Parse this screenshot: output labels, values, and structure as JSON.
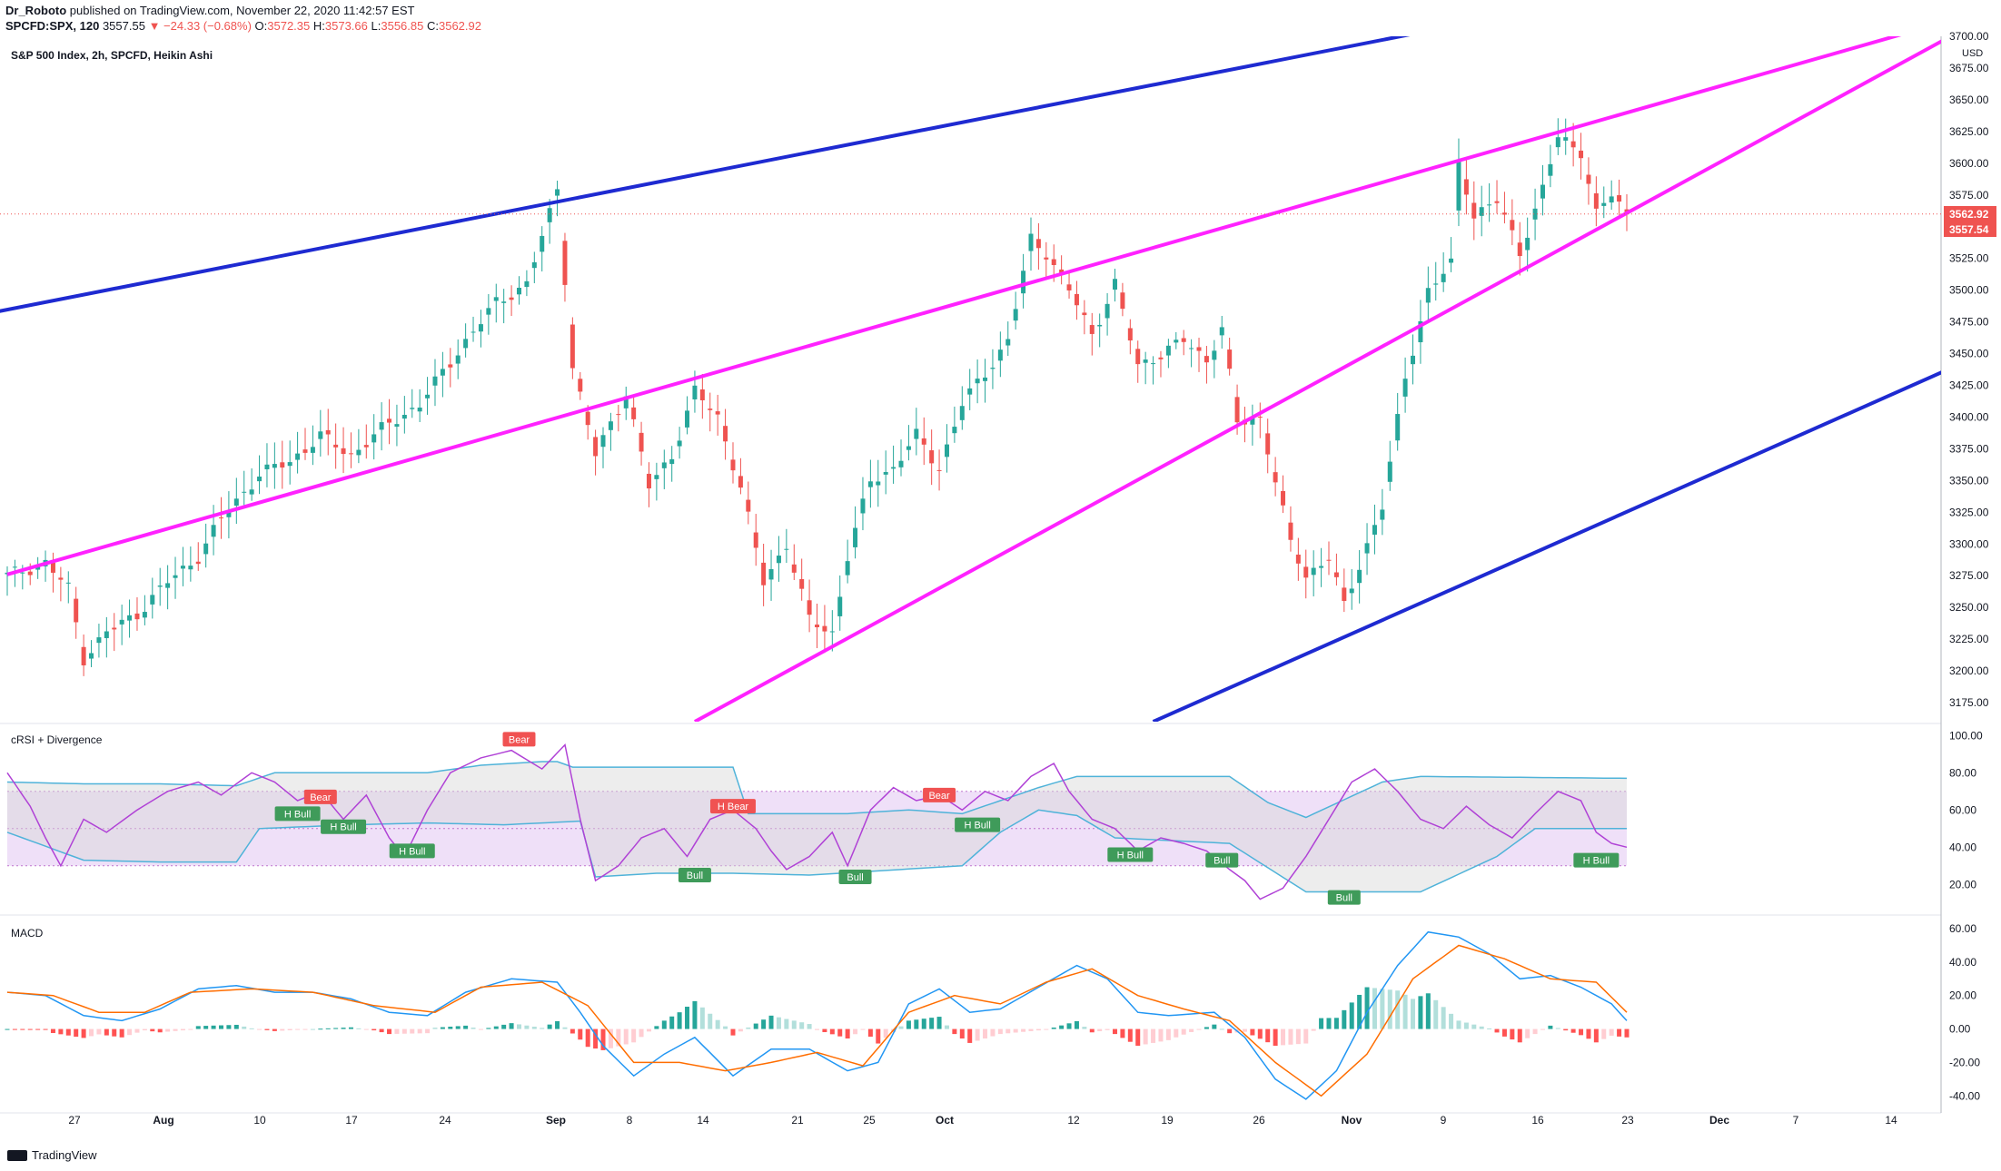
{
  "header": {
    "author": "Dr_Roboto",
    "published": "published on TradingView.com, November 22, 2020 11:42:57 EST",
    "symbol": "SPCFD:SPX, 120",
    "last": "3557.55",
    "change": "▼ −24.33 (−0.68%)",
    "o_label": "O:",
    "o_val": "3572.35",
    "h_label": "H:",
    "h_val": "3573.66",
    "l_label": "L:",
    "l_val": "3556.85",
    "c_label": "C:",
    "c_val": "3562.92"
  },
  "main_title": "S&P 500 Index, 2h, SPCFD, Heikin Ashi",
  "rsi_title": "cRSI + Divergence",
  "macd_title": "MACD",
  "footer_brand": "TradingView",
  "colors": {
    "up": "#26a69a",
    "down": "#ef5350",
    "blue_line": "#1e2ad1",
    "magenta": "#ff22ff",
    "rsi_band": "#e9d6f5",
    "cloud": "#e5e5e5",
    "macd_line": "#2196f3",
    "signal_line": "#ff6d00"
  },
  "chart_data": [
    {
      "type": "candlestick",
      "title": "S&P 500 Index, 2h, SPCFD, Heikin Ashi",
      "currency": "USD",
      "y_ticks": [
        3175,
        3200,
        3225,
        3250,
        3275,
        3300,
        3325,
        3350,
        3375,
        3400,
        3425,
        3450,
        3475,
        3500,
        3525,
        3550,
        3575,
        3600,
        3625,
        3650,
        3675,
        3700
      ],
      "ylim": [
        3160,
        3700
      ],
      "x_ticks": [
        "27",
        "Aug",
        "10",
        "17",
        "24",
        "Sep",
        "8",
        "14",
        "21",
        "25",
        "Oct",
        "12",
        "19",
        "26",
        "Nov",
        "9",
        "16",
        "23",
        "Dec",
        "7",
        "14"
      ],
      "price_labels": [
        "3562.92",
        "3557.54"
      ],
      "last_price": 3560,
      "path_anchors": [
        [
          0,
          3275
        ],
        [
          5,
          3285
        ],
        [
          8,
          3265
        ],
        [
          10,
          3210
        ],
        [
          13,
          3230
        ],
        [
          17,
          3245
        ],
        [
          21,
          3270
        ],
        [
          25,
          3290
        ],
        [
          28,
          3320
        ],
        [
          33,
          3355
        ],
        [
          37,
          3365
        ],
        [
          41,
          3385
        ],
        [
          45,
          3370
        ],
        [
          50,
          3395
        ],
        [
          54,
          3410
        ],
        [
          60,
          3460
        ],
        [
          64,
          3490
        ],
        [
          68,
          3505
        ],
        [
          71,
          3560
        ],
        [
          72,
          3580
        ],
        [
          74,
          3440
        ],
        [
          77,
          3370
        ],
        [
          81,
          3420
        ],
        [
          84,
          3345
        ],
        [
          87,
          3370
        ],
        [
          90,
          3420
        ],
        [
          93,
          3400
        ],
        [
          96,
          3345
        ],
        [
          99,
          3270
        ],
        [
          102,
          3300
        ],
        [
          105,
          3240
        ],
        [
          108,
          3230
        ],
        [
          110,
          3290
        ],
        [
          113,
          3350
        ],
        [
          116,
          3360
        ],
        [
          119,
          3385
        ],
        [
          122,
          3360
        ],
        [
          125,
          3410
        ],
        [
          128,
          3435
        ],
        [
          131,
          3460
        ],
        [
          134,
          3540
        ],
        [
          136,
          3530
        ],
        [
          139,
          3500
        ],
        [
          142,
          3465
        ],
        [
          145,
          3505
        ],
        [
          148,
          3440
        ],
        [
          151,
          3450
        ],
        [
          154,
          3460
        ],
        [
          157,
          3445
        ],
        [
          159,
          3470
        ],
        [
          161,
          3395
        ],
        [
          164,
          3400
        ],
        [
          166,
          3350
        ],
        [
          168,
          3300
        ],
        [
          170,
          3275
        ],
        [
          173,
          3290
        ],
        [
          175,
          3250
        ],
        [
          178,
          3300
        ],
        [
          180,
          3330
        ],
        [
          183,
          3430
        ],
        [
          186,
          3500
        ],
        [
          189,
          3520
        ],
        [
          190,
          3600
        ],
        [
          192,
          3560
        ],
        [
          195,
          3570
        ],
        [
          198,
          3530
        ],
        [
          201,
          3580
        ],
        [
          203,
          3620
        ],
        [
          206,
          3610
        ],
        [
          208,
          3560
        ],
        [
          210,
          3575
        ],
        [
          212,
          3560
        ]
      ],
      "trendlines": [
        {
          "name": "upper-blue",
          "color": "#1e2ad1",
          "from": [
            -20,
            3461
          ],
          "to": [
            240,
            3768
          ]
        },
        {
          "name": "lower-blue",
          "color": "#1e2ad1",
          "from": [
            150,
            3160
          ],
          "to": [
            255,
            3440
          ]
        },
        {
          "name": "upper-magenta",
          "color": "#ff22ff",
          "from": [
            0,
            3276
          ],
          "to": [
            250,
            3705
          ]
        },
        {
          "name": "lower-magenta",
          "color": "#ff22ff",
          "from": [
            90,
            3160
          ],
          "to": [
            255,
            3702
          ]
        }
      ]
    },
    {
      "type": "line",
      "title": "cRSI + Divergence",
      "y_ticks": [
        20,
        40,
        60,
        80,
        100
      ],
      "ylim": [
        5,
        105
      ],
      "band": [
        30,
        70
      ],
      "midline": 50,
      "crsi_anchors": [
        [
          0,
          80
        ],
        [
          3,
          62
        ],
        [
          5,
          45
        ],
        [
          7,
          30
        ],
        [
          10,
          55
        ],
        [
          13,
          48
        ],
        [
          17,
          60
        ],
        [
          21,
          70
        ],
        [
          25,
          75
        ],
        [
          28,
          68
        ],
        [
          32,
          80
        ],
        [
          35,
          75
        ],
        [
          38,
          65
        ],
        [
          41,
          70
        ],
        [
          44,
          55
        ],
        [
          47,
          68
        ],
        [
          50,
          45
        ],
        [
          52,
          35
        ],
        [
          55,
          60
        ],
        [
          58,
          80
        ],
        [
          62,
          88
        ],
        [
          66,
          92
        ],
        [
          70,
          82
        ],
        [
          73,
          95
        ],
        [
          75,
          55
        ],
        [
          77,
          22
        ],
        [
          80,
          30
        ],
        [
          83,
          45
        ],
        [
          86,
          50
        ],
        [
          89,
          35
        ],
        [
          92,
          55
        ],
        [
          95,
          60
        ],
        [
          98,
          50
        ],
        [
          100,
          38
        ],
        [
          102,
          28
        ],
        [
          105,
          35
        ],
        [
          108,
          48
        ],
        [
          110,
          30
        ],
        [
          113,
          60
        ],
        [
          116,
          72
        ],
        [
          119,
          65
        ],
        [
          122,
          68
        ],
        [
          125,
          60
        ],
        [
          128,
          70
        ],
        [
          131,
          65
        ],
        [
          134,
          78
        ],
        [
          137,
          85
        ],
        [
          139,
          70
        ],
        [
          142,
          55
        ],
        [
          145,
          50
        ],
        [
          148,
          38
        ],
        [
          151,
          45
        ],
        [
          154,
          42
        ],
        [
          157,
          38
        ],
        [
          160,
          28
        ],
        [
          162,
          22
        ],
        [
          164,
          12
        ],
        [
          167,
          18
        ],
        [
          170,
          35
        ],
        [
          173,
          55
        ],
        [
          176,
          75
        ],
        [
          179,
          82
        ],
        [
          182,
          70
        ],
        [
          185,
          55
        ],
        [
          188,
          50
        ],
        [
          191,
          62
        ],
        [
          194,
          52
        ],
        [
          197,
          45
        ],
        [
          200,
          58
        ],
        [
          203,
          70
        ],
        [
          206,
          65
        ],
        [
          208,
          48
        ],
        [
          210,
          42
        ],
        [
          212,
          40
        ]
      ],
      "upper_anchors": [
        [
          0,
          75
        ],
        [
          10,
          74
        ],
        [
          20,
          74
        ],
        [
          30,
          73
        ],
        [
          35,
          80
        ],
        [
          45,
          80
        ],
        [
          55,
          80
        ],
        [
          62,
          84
        ],
        [
          70,
          86
        ],
        [
          72,
          86
        ],
        [
          74,
          83
        ],
        [
          85,
          83
        ],
        [
          95,
          83
        ],
        [
          97,
          58
        ],
        [
          110,
          58
        ],
        [
          118,
          60
        ],
        [
          125,
          58
        ],
        [
          135,
          72
        ],
        [
          140,
          78
        ],
        [
          160,
          78
        ],
        [
          165,
          64
        ],
        [
          170,
          56
        ],
        [
          180,
          75
        ],
        [
          185,
          78
        ],
        [
          212,
          77
        ]
      ],
      "lower_anchors": [
        [
          0,
          48
        ],
        [
          10,
          33
        ],
        [
          20,
          32
        ],
        [
          30,
          32
        ],
        [
          33,
          50
        ],
        [
          45,
          52
        ],
        [
          55,
          53
        ],
        [
          65,
          52
        ],
        [
          75,
          54
        ],
        [
          77,
          24
        ],
        [
          85,
          26
        ],
        [
          95,
          26
        ],
        [
          105,
          25
        ],
        [
          125,
          30
        ],
        [
          130,
          48
        ],
        [
          135,
          60
        ],
        [
          140,
          57
        ],
        [
          145,
          45
        ],
        [
          160,
          42
        ],
        [
          170,
          16
        ],
        [
          185,
          16
        ],
        [
          195,
          35
        ],
        [
          200,
          50
        ],
        [
          212,
          50
        ]
      ],
      "signals": [
        {
          "label": "Bear",
          "x": 67,
          "v": 98,
          "kind": "bear"
        },
        {
          "label": "Bear",
          "x": 41,
          "v": 67,
          "kind": "bear"
        },
        {
          "label": "H Bull",
          "x": 38,
          "v": 58,
          "kind": "bull"
        },
        {
          "label": "H Bull",
          "x": 44,
          "v": 51,
          "kind": "bull"
        },
        {
          "label": "H Bull",
          "x": 53,
          "v": 38,
          "kind": "bull"
        },
        {
          "label": "H Bear",
          "x": 95,
          "v": 62,
          "kind": "bear"
        },
        {
          "label": "Bull",
          "x": 90,
          "v": 25,
          "kind": "bull"
        },
        {
          "label": "Bull",
          "x": 111,
          "v": 24,
          "kind": "bull"
        },
        {
          "label": "Bear",
          "x": 122,
          "v": 68,
          "kind": "bear"
        },
        {
          "label": "H Bull",
          "x": 127,
          "v": 52,
          "kind": "bull"
        },
        {
          "label": "H Bull",
          "x": 147,
          "v": 36,
          "kind": "bull"
        },
        {
          "label": "Bull",
          "x": 159,
          "v": 33,
          "kind": "bull"
        },
        {
          "label": "Bull",
          "x": 175,
          "v": 13,
          "kind": "bull"
        },
        {
          "label": "H Bull",
          "x": 208,
          "v": 33,
          "kind": "bull"
        }
      ]
    },
    {
      "type": "line",
      "title": "MACD",
      "y_ticks": [
        -40,
        -20,
        0,
        20,
        40,
        60
      ],
      "ylim": [
        -48,
        66
      ],
      "macd_anchors": [
        [
          0,
          22
        ],
        [
          5,
          20
        ],
        [
          10,
          8
        ],
        [
          15,
          5
        ],
        [
          20,
          12
        ],
        [
          25,
          24
        ],
        [
          30,
          26
        ],
        [
          35,
          22
        ],
        [
          40,
          22
        ],
        [
          45,
          18
        ],
        [
          50,
          10
        ],
        [
          55,
          8
        ],
        [
          60,
          22
        ],
        [
          66,
          30
        ],
        [
          72,
          28
        ],
        [
          75,
          10
        ],
        [
          78,
          -10
        ],
        [
          82,
          -28
        ],
        [
          86,
          -15
        ],
        [
          90,
          -5
        ],
        [
          95,
          -28
        ],
        [
          100,
          -12
        ],
        [
          105,
          -12
        ],
        [
          110,
          -25
        ],
        [
          114,
          -20
        ],
        [
          118,
          15
        ],
        [
          122,
          24
        ],
        [
          126,
          10
        ],
        [
          130,
          12
        ],
        [
          135,
          25
        ],
        [
          140,
          38
        ],
        [
          144,
          30
        ],
        [
          148,
          10
        ],
        [
          152,
          8
        ],
        [
          158,
          10
        ],
        [
          162,
          -5
        ],
        [
          166,
          -30
        ],
        [
          170,
          -42
        ],
        [
          174,
          -25
        ],
        [
          178,
          10
        ],
        [
          182,
          38
        ],
        [
          186,
          58
        ],
        [
          190,
          55
        ],
        [
          194,
          45
        ],
        [
          198,
          30
        ],
        [
          202,
          32
        ],
        [
          206,
          25
        ],
        [
          210,
          15
        ],
        [
          212,
          5
        ]
      ],
      "signal_anchors": [
        [
          0,
          22
        ],
        [
          6,
          20
        ],
        [
          12,
          10
        ],
        [
          18,
          10
        ],
        [
          24,
          22
        ],
        [
          32,
          24
        ],
        [
          40,
          22
        ],
        [
          48,
          14
        ],
        [
          56,
          10
        ],
        [
          62,
          25
        ],
        [
          70,
          28
        ],
        [
          76,
          14
        ],
        [
          82,
          -20
        ],
        [
          88,
          -20
        ],
        [
          94,
          -25
        ],
        [
          100,
          -20
        ],
        [
          106,
          -14
        ],
        [
          112,
          -22
        ],
        [
          118,
          10
        ],
        [
          124,
          20
        ],
        [
          130,
          15
        ],
        [
          136,
          28
        ],
        [
          142,
          36
        ],
        [
          148,
          20
        ],
        [
          154,
          12
        ],
        [
          160,
          5
        ],
        [
          166,
          -20
        ],
        [
          172,
          -40
        ],
        [
          178,
          -15
        ],
        [
          184,
          30
        ],
        [
          190,
          50
        ],
        [
          196,
          42
        ],
        [
          202,
          30
        ],
        [
          208,
          28
        ],
        [
          212,
          10
        ]
      ]
    }
  ]
}
